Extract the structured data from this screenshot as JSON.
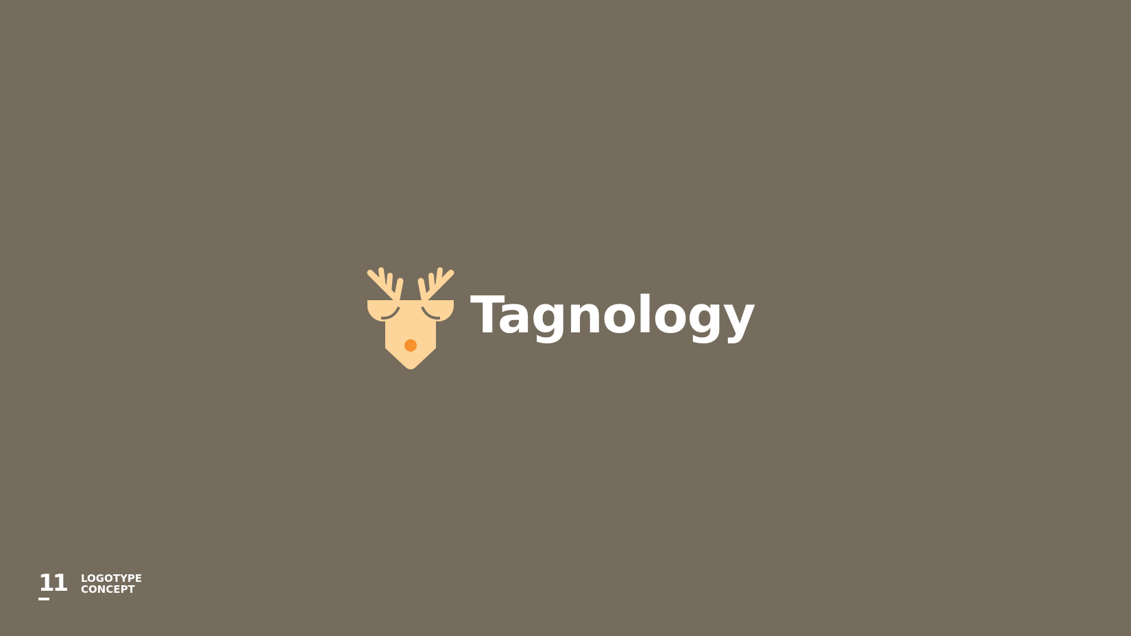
{
  "theme": {
    "background": "#756c5d",
    "mark_fill": "#fdd59a",
    "mark_shadow": "#756c5d",
    "nose": "#f6912e",
    "text": "#ffffff"
  },
  "logo": {
    "icon": "deer-head-icon",
    "wordmark": "Tagnology"
  },
  "footer": {
    "page_number": "11",
    "caption_line1": "LOGOTYPE",
    "caption_line2": "CONCEPT"
  }
}
